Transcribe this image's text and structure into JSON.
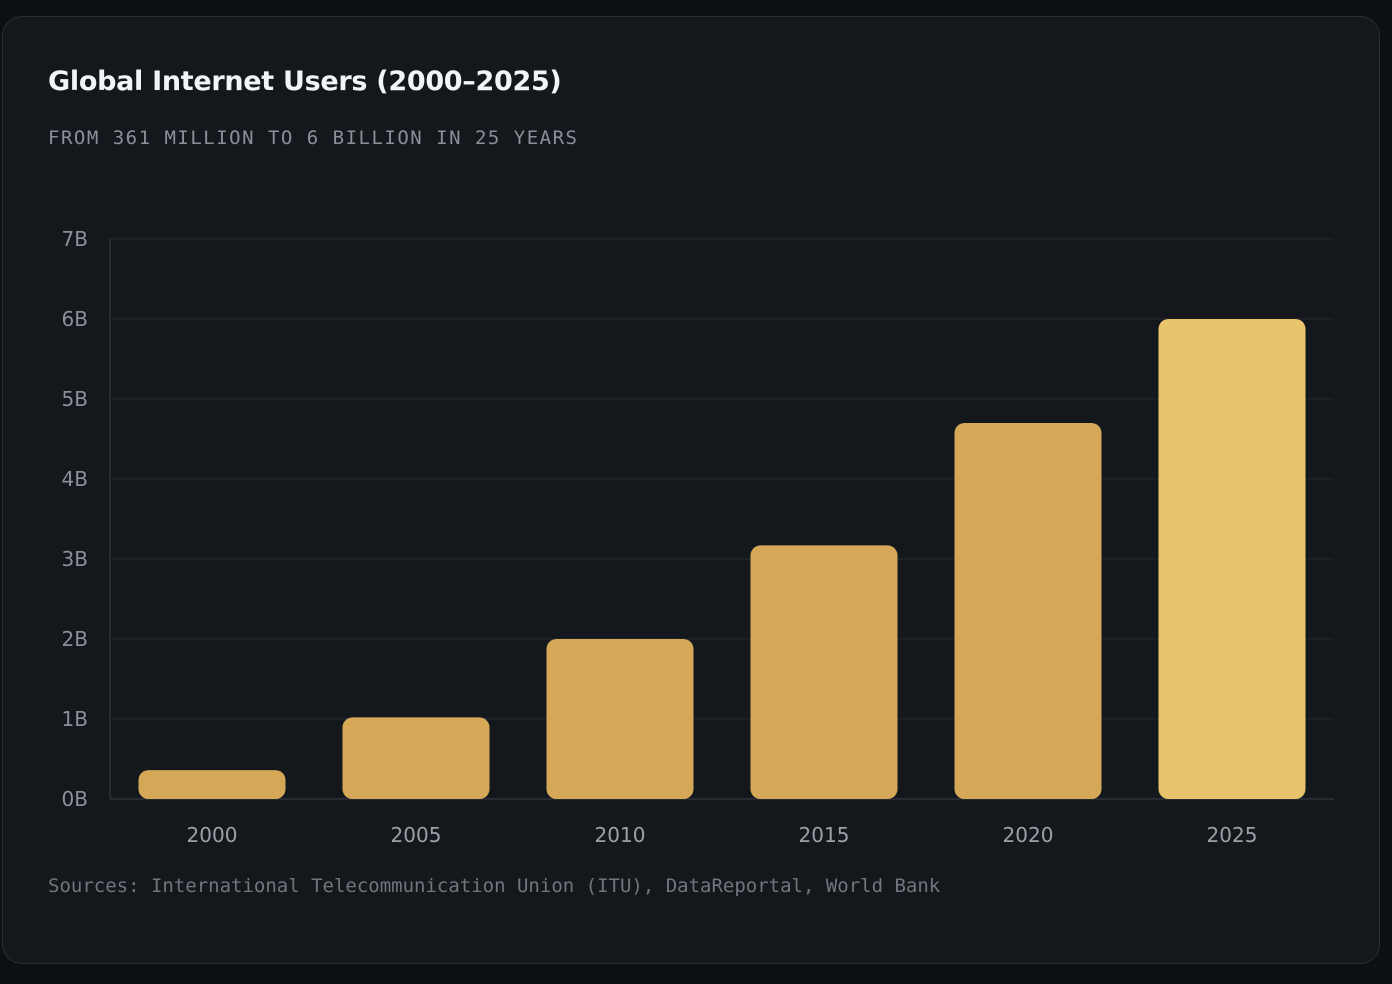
{
  "title": "Global Internet Users (2000–2025)",
  "subtitle": "FROM 361 MILLION TO 6 BILLION IN 25 YEARS",
  "sources": "Sources: International Telecommunication Union (ITU), DataReportal, World Bank",
  "colors": {
    "bar": "#d4a856",
    "bar_highlight": "#e8c46c",
    "grid": "#232830",
    "axis": "#2e333a"
  },
  "chart_data": {
    "type": "bar",
    "title": "Global Internet Users (2000–2025)",
    "subtitle": "FROM 361 MILLION TO 6 BILLION IN 25 YEARS",
    "xlabel": "",
    "ylabel": "",
    "categories": [
      "2000",
      "2005",
      "2010",
      "2015",
      "2020",
      "2025"
    ],
    "values": [
      0.361,
      1.02,
      2.0,
      3.17,
      4.7,
      6.0
    ],
    "unit": "billion users",
    "highlight_index": 5,
    "ylim": [
      0,
      7
    ],
    "yticks": [
      0,
      1,
      2,
      3,
      4,
      5,
      6,
      7
    ],
    "ytick_labels": [
      "0B",
      "1B",
      "2B",
      "3B",
      "4B",
      "5B",
      "6B",
      "7B"
    ],
    "grid": true
  }
}
